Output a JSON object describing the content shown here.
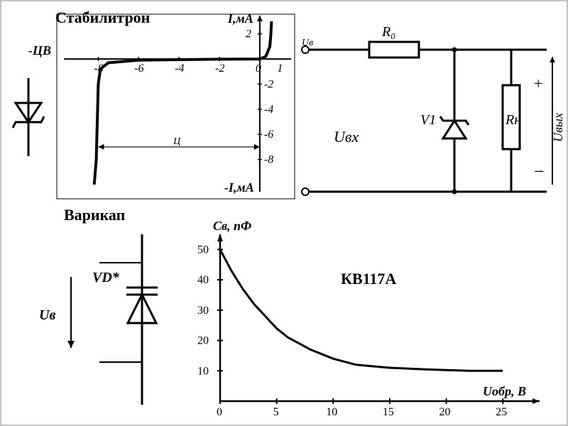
{
  "colors": {
    "stroke": "#000000",
    "bg": "#ffffff",
    "grid": "#000000"
  },
  "typography": {
    "title_fontsize": 22,
    "axis_label_fontsize": 18,
    "tick_fontsize": 16,
    "component_label_fontsize": 20
  },
  "titles": {
    "zener": "Стабилитрон",
    "varicap": "Варикап"
  },
  "zener_iv": {
    "type": "line",
    "x_axis_label": "-ЦВ",
    "y_axis_label_top": "I,мА",
    "y_axis_label_bottom": "-I,мА",
    "x_dim_label": "Ц",
    "x_right_tick": "1",
    "x_ticks_neg": [
      "-8",
      "-6",
      "-4",
      "-2",
      "0"
    ],
    "y_ticks_pos": [
      "2"
    ],
    "y_ticks_neg": [
      "-2",
      "-4",
      "-6",
      "-8"
    ],
    "xlim": [
      -9,
      1.2
    ],
    "ylim": [
      -10,
      3
    ],
    "stroke_width": 4,
    "curve_points": [
      [
        -8.2,
        -10
      ],
      [
        -8.1,
        -8
      ],
      [
        -8.05,
        -5
      ],
      [
        -8,
        -2
      ],
      [
        -7.9,
        -0.8
      ],
      [
        -7.5,
        -0.3
      ],
      [
        -6,
        -0.1
      ],
      [
        -4,
        -0.05
      ],
      [
        -2,
        -0.02
      ],
      [
        0,
        0
      ],
      [
        0.3,
        0.2
      ],
      [
        0.5,
        1
      ],
      [
        0.55,
        2
      ],
      [
        0.58,
        3
      ]
    ]
  },
  "zener_symbol": {
    "stroke_width": 3
  },
  "regulator_circuit": {
    "labels": {
      "R0": "R₀",
      "V1": "V1",
      "RH": "Rн",
      "Uin": "Uвх",
      "Uin2": "Uв",
      "Uout": "Uвых",
      "plus": "+",
      "minus": "−"
    },
    "stroke_width": 3
  },
  "varicap_symbol": {
    "labels": {
      "UB": "Uв",
      "VD": "VD*"
    },
    "stroke_width": 3
  },
  "varicap_curve": {
    "type": "line",
    "title": "КВ117А",
    "x_label": "Uобр, В",
    "y_label": "Cв, пФ",
    "x_ticks": [
      0,
      5,
      10,
      15,
      20,
      25
    ],
    "y_ticks": [
      10,
      20,
      30,
      40,
      50
    ],
    "xlim": [
      0,
      27
    ],
    "ylim": [
      0,
      55
    ],
    "stroke_width": 3,
    "curve_points": [
      [
        0,
        50
      ],
      [
        1,
        43
      ],
      [
        2,
        37
      ],
      [
        3,
        32
      ],
      [
        4,
        28
      ],
      [
        5,
        24
      ],
      [
        6,
        21
      ],
      [
        7,
        19
      ],
      [
        8,
        17
      ],
      [
        10,
        14
      ],
      [
        12,
        12
      ],
      [
        15,
        11
      ],
      [
        18,
        10.5
      ],
      [
        22,
        10
      ],
      [
        25,
        10
      ]
    ]
  }
}
